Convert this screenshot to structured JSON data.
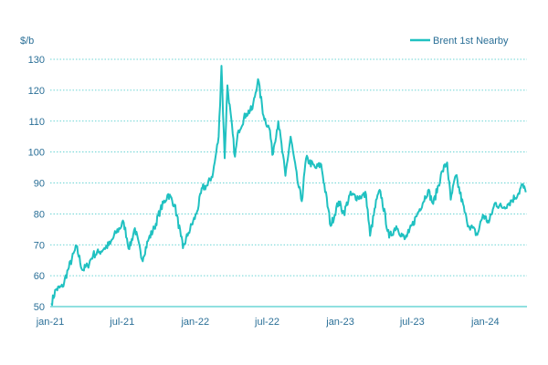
{
  "chart_data": {
    "type": "line",
    "ylabel": "$/b",
    "ylim": [
      50,
      130
    ],
    "y_ticks": [
      "50",
      "60",
      "70",
      "80",
      "90",
      "100",
      "110",
      "120",
      "130"
    ],
    "x_ticks": [
      "jan-21",
      "jul-21",
      "jan-22",
      "jul-22",
      "jan-23",
      "jul-23",
      "jan-24"
    ],
    "x_range": [
      "2021-01-01",
      "2024-04-15"
    ],
    "grid": "horizontal dotted",
    "legend_position": "top-right",
    "series": [
      {
        "name": "Brent 1st Nearby",
        "color": "#20c1c1",
        "points": [
          [
            "2021-01-04",
            51.1
          ],
          [
            "2021-01-15",
            55.5
          ],
          [
            "2021-02-01",
            56.4
          ],
          [
            "2021-02-15",
            62.0
          ],
          [
            "2021-03-08",
            69.4
          ],
          [
            "2021-03-23",
            61.8
          ],
          [
            "2021-04-05",
            63.2
          ],
          [
            "2021-04-19",
            66.8
          ],
          [
            "2021-05-03",
            67.5
          ],
          [
            "2021-05-17",
            68.9
          ],
          [
            "2021-06-01",
            70.3
          ],
          [
            "2021-06-15",
            73.8
          ],
          [
            "2021-07-05",
            77.2
          ],
          [
            "2021-07-19",
            68.6
          ],
          [
            "2021-08-02",
            75.4
          ],
          [
            "2021-08-20",
            65.2
          ],
          [
            "2021-09-06",
            72.0
          ],
          [
            "2021-09-20",
            75.4
          ],
          [
            "2021-10-05",
            81.3
          ],
          [
            "2021-10-25",
            86.4
          ],
          [
            "2021-11-10",
            83.0
          ],
          [
            "2021-11-26",
            72.7
          ],
          [
            "2021-12-01",
            68.9
          ],
          [
            "2021-12-15",
            73.9
          ],
          [
            "2022-01-04",
            80.0
          ],
          [
            "2022-01-19",
            88.4
          ],
          [
            "2022-02-01",
            89.2
          ],
          [
            "2022-02-15",
            93.3
          ],
          [
            "2022-03-01",
            105.0
          ],
          [
            "2022-03-08",
            127.9
          ],
          [
            "2022-03-16",
            98.0
          ],
          [
            "2022-03-23",
            121.6
          ],
          [
            "2022-04-11",
            98.5
          ],
          [
            "2022-04-20",
            107.0
          ],
          [
            "2022-05-09",
            112.4
          ],
          [
            "2022-05-25",
            114.0
          ],
          [
            "2022-06-08",
            123.6
          ],
          [
            "2022-06-22",
            111.7
          ],
          [
            "2022-07-08",
            107.0
          ],
          [
            "2022-07-14",
            99.1
          ],
          [
            "2022-07-29",
            110.0
          ],
          [
            "2022-08-16",
            92.3
          ],
          [
            "2022-08-29",
            105.0
          ],
          [
            "2022-09-15",
            90.8
          ],
          [
            "2022-09-26",
            84.1
          ],
          [
            "2022-10-07",
            97.9
          ],
          [
            "2022-10-31",
            94.8
          ],
          [
            "2022-11-14",
            96.0
          ],
          [
            "2022-12-08",
            76.1
          ],
          [
            "2022-12-28",
            84.0
          ],
          [
            "2023-01-10",
            80.1
          ],
          [
            "2023-01-25",
            86.1
          ],
          [
            "2023-02-15",
            85.4
          ],
          [
            "2023-03-07",
            86.2
          ],
          [
            "2023-03-17",
            72.9
          ],
          [
            "2023-04-03",
            84.9
          ],
          [
            "2023-04-12",
            87.3
          ],
          [
            "2023-05-04",
            72.3
          ],
          [
            "2023-05-22",
            76.0
          ],
          [
            "2023-06-12",
            71.8
          ],
          [
            "2023-06-23",
            74.0
          ],
          [
            "2023-07-14",
            79.9
          ],
          [
            "2023-08-10",
            87.6
          ],
          [
            "2023-08-23",
            83.2
          ],
          [
            "2023-09-15",
            93.9
          ],
          [
            "2023-09-27",
            96.6
          ],
          [
            "2023-10-06",
            84.6
          ],
          [
            "2023-10-19",
            92.4
          ],
          [
            "2023-11-16",
            77.4
          ],
          [
            "2023-12-12",
            73.2
          ],
          [
            "2023-12-26",
            79.7
          ],
          [
            "2024-01-10",
            77.2
          ],
          [
            "2024-01-26",
            83.6
          ],
          [
            "2024-02-12",
            82.0
          ],
          [
            "2024-03-01",
            83.5
          ],
          [
            "2024-03-25",
            86.7
          ],
          [
            "2024-04-03",
            89.4
          ],
          [
            "2024-04-12",
            87.0
          ]
        ]
      }
    ]
  }
}
